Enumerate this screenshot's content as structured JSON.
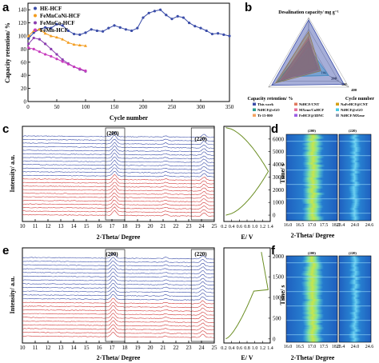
{
  "panels": {
    "a": "a",
    "b": "b",
    "c": "c",
    "d": "d",
    "e": "e",
    "f": "f"
  },
  "colors": {
    "blue": "#3a4ca8",
    "orange": "#f39c1e",
    "purple": "#8a3fb0",
    "magenta": "#c83cbe",
    "red": "#d23b3b",
    "green": "#6b8e23"
  },
  "chart_data": [
    {
      "type": "line",
      "panel": "a",
      "xlabel": "Cycle number",
      "ylabel": "Capacity retention/ %",
      "xlim": [
        0,
        350
      ],
      "ylim": [
        0,
        150
      ],
      "xticks": [
        0,
        50,
        100,
        150,
        200,
        250,
        300,
        350
      ],
      "yticks": [
        0,
        20,
        40,
        60,
        80,
        100,
        120,
        140
      ],
      "legend": "top-left",
      "series": [
        {
          "name": "HE-HCF",
          "color": "#3a4ca8",
          "x": [
            1,
            10,
            20,
            30,
            40,
            50,
            60,
            70,
            80,
            90,
            100,
            110,
            120,
            130,
            140,
            150,
            160,
            170,
            180,
            190,
            200,
            210,
            220,
            230,
            240,
            250,
            260,
            270,
            280,
            290,
            300,
            310,
            320,
            330,
            340,
            350
          ],
          "y": [
            96,
            105,
            110,
            113,
            112,
            118,
            116,
            108,
            103,
            102,
            105,
            110,
            108,
            107,
            112,
            116,
            113,
            110,
            108,
            112,
            128,
            135,
            138,
            140,
            132,
            126,
            130,
            128,
            120,
            115,
            112,
            108,
            103,
            104,
            102,
            100
          ]
        },
        {
          "name": "FeMnCoNi-HCF",
          "color": "#f39c1e",
          "x": [
            1,
            10,
            20,
            30,
            40,
            50,
            60,
            70,
            80,
            90,
            100
          ],
          "y": [
            100,
            108,
            110,
            104,
            100,
            98,
            95,
            90,
            87,
            86,
            85
          ]
        },
        {
          "name": "FeMnCo-HCF",
          "color": "#8a3fb0",
          "x": [
            1,
            10,
            20,
            30,
            40,
            50,
            60,
            70,
            80,
            90,
            100
          ],
          "y": [
            88,
            97,
            95,
            88,
            80,
            72,
            64,
            58,
            53,
            49,
            46
          ]
        },
        {
          "name": "FeMn-HCF",
          "color": "#c83cbe",
          "x": [
            1,
            10,
            20,
            30,
            40,
            50,
            60,
            70,
            80,
            90,
            100
          ],
          "y": [
            82,
            80,
            76,
            72,
            69,
            65,
            61,
            57,
            53,
            50,
            47
          ]
        }
      ]
    },
    {
      "type": "radar",
      "panel": "b",
      "axes": [
        "Desalination capacity/ mg g⁻¹",
        "Capacity retention/ %",
        "Cycle number"
      ],
      "rings": [
        "100",
        "200",
        "300",
        "400"
      ],
      "series": [
        {
          "name": "This work",
          "color": "#3a4ca8",
          "values": [
            0.95,
            0.92,
            0.88
          ]
        },
        {
          "name": "NiHCF/CNT",
          "color": "#e07a5f",
          "values": [
            0.55,
            0.7,
            0.25
          ]
        },
        {
          "name": "NaFeHCF@CNT",
          "color": "#d4a017",
          "values": [
            0.7,
            0.82,
            0.3
          ]
        },
        {
          "name": "NiHCF@rGO",
          "color": "#2a9d8f",
          "values": [
            0.5,
            0.78,
            0.22
          ]
        },
        {
          "name": "MXene/CuHCF",
          "color": "#e76f9a",
          "values": [
            0.45,
            0.6,
            0.18
          ]
        },
        {
          "name": "NiHCF@rGO ",
          "color": "#48cae4",
          "values": [
            0.35,
            0.55,
            0.5
          ]
        },
        {
          "name": "Ti-15-800",
          "color": "#f4a261",
          "values": [
            0.6,
            0.7,
            0.12
          ]
        },
        {
          "name": "FeHCF@3DNC",
          "color": "#9b5de5",
          "values": [
            0.4,
            0.65,
            0.3
          ]
        },
        {
          "name": "NiHCF/MXene",
          "color": "#8d99ae",
          "values": [
            0.3,
            0.5,
            0.2
          ]
        }
      ]
    },
    {
      "type": "line",
      "panel": "c",
      "xlabel": "2-Theta/ Degree",
      "ylabel": "Intensity/ a.u.",
      "xlim": [
        10,
        25
      ],
      "xticks": [
        10,
        11,
        12,
        13,
        14,
        15,
        16,
        17,
        18,
        19,
        20,
        21,
        22,
        23,
        24,
        25
      ],
      "peaks": [
        "(200)",
        "(220)"
      ],
      "peak_positions": [
        17.2,
        24.2
      ],
      "n_blue": 12,
      "n_red": 11
    },
    {
      "type": "line",
      "panel": "c-side",
      "xlabel": "E/ V",
      "ylabel": "Time/ s",
      "xlim": [
        0.2,
        1.4
      ],
      "xticks": [
        "0.2",
        "0.4",
        "0.6",
        "0.8",
        "1.0",
        "1.2",
        "1.4"
      ],
      "ylim": [
        -500,
        7000
      ],
      "yticks": [
        0,
        1000,
        2000,
        3000,
        4000,
        5000,
        6000
      ]
    },
    {
      "type": "heatmap",
      "panel": "d",
      "xlabel": "2-Theta/ Degree",
      "left_title": "(200)",
      "right_title": "(220)",
      "left_ticks": [
        "16.0",
        "16.5",
        "17.0",
        "17.5",
        "18.0"
      ],
      "right_ticks": [
        "23.4",
        "24.0",
        "24.6"
      ]
    },
    {
      "type": "line",
      "panel": "e",
      "xlabel": "2-Theta/ Degree",
      "ylabel": "Intensity/ a.u.",
      "xlim": [
        10,
        25
      ],
      "xticks": [
        10,
        11,
        12,
        13,
        14,
        15,
        16,
        17,
        18,
        19,
        20,
        21,
        22,
        23,
        24,
        25
      ],
      "peaks": [
        "(200)",
        "(220)"
      ],
      "peak_positions": [
        17.1,
        24.1
      ],
      "n_blue": 12,
      "n_red": 10
    },
    {
      "type": "line",
      "panel": "e-side",
      "xlabel": "E/ V",
      "ylabel": "Time/ s",
      "xlim": [
        0.2,
        1.4
      ],
      "xticks": [
        "0.2",
        "0.4",
        "0.6",
        "0.8",
        "1.0",
        "1.2",
        "1.4"
      ],
      "ylim": [
        -100,
        2200
      ],
      "yticks": [
        0,
        500,
        1000,
        1500,
        2000
      ]
    },
    {
      "type": "heatmap",
      "panel": "f",
      "xlabel": "2-Theta/ Degree",
      "left_title": "(200)",
      "right_title": "(220)",
      "left_ticks": [
        "16.0",
        "16.5",
        "17.0",
        "17.5",
        "18.0"
      ],
      "right_ticks": [
        "23.4",
        "24.0",
        "24.6"
      ]
    }
  ]
}
